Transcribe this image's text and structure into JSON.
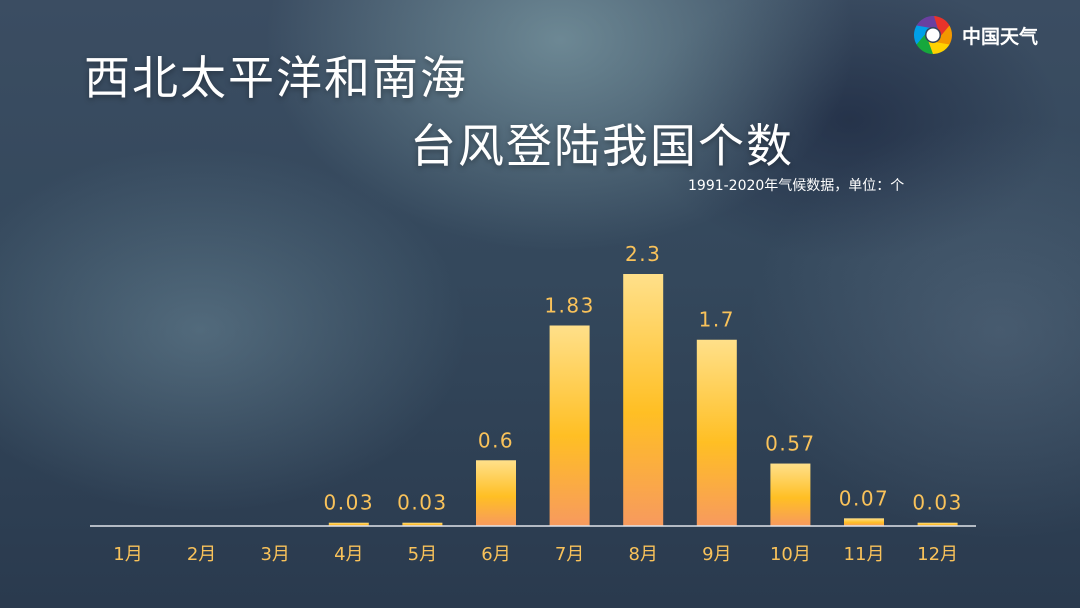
{
  "brand": {
    "name": "中国天气",
    "colors": [
      "#e8332a",
      "#f39800",
      "#ffd200",
      "#16a83c",
      "#00a0e9",
      "#6a3fa0"
    ]
  },
  "chart_data": {
    "type": "bar",
    "title_line1": "西北太平洋和南海",
    "title_line2": "台风登陆我国个数",
    "subtitle": "1991-2020年气候数据，单位：个",
    "categories": [
      "1月",
      "2月",
      "3月",
      "4月",
      "5月",
      "6月",
      "7月",
      "8月",
      "9月",
      "10月",
      "11月",
      "12月"
    ],
    "values": [
      null,
      null,
      null,
      0.03,
      0.03,
      0.6,
      1.83,
      2.3,
      1.7,
      0.57,
      0.07,
      0.03
    ],
    "value_labels": [
      "",
      "",
      "",
      "0.03",
      "0.03",
      "0.6",
      "1.83",
      "2.3",
      "1.7",
      "0.57",
      "0.07",
      "0.03"
    ],
    "ylim": [
      0,
      2.3
    ],
    "grid": false,
    "colors": {
      "bar_top": "#ffe08a",
      "bar_mid": "#ffbf24",
      "bar_bottom": "#f79a5e",
      "label": "#f9c25a",
      "axis": "#e0e4ea"
    }
  }
}
